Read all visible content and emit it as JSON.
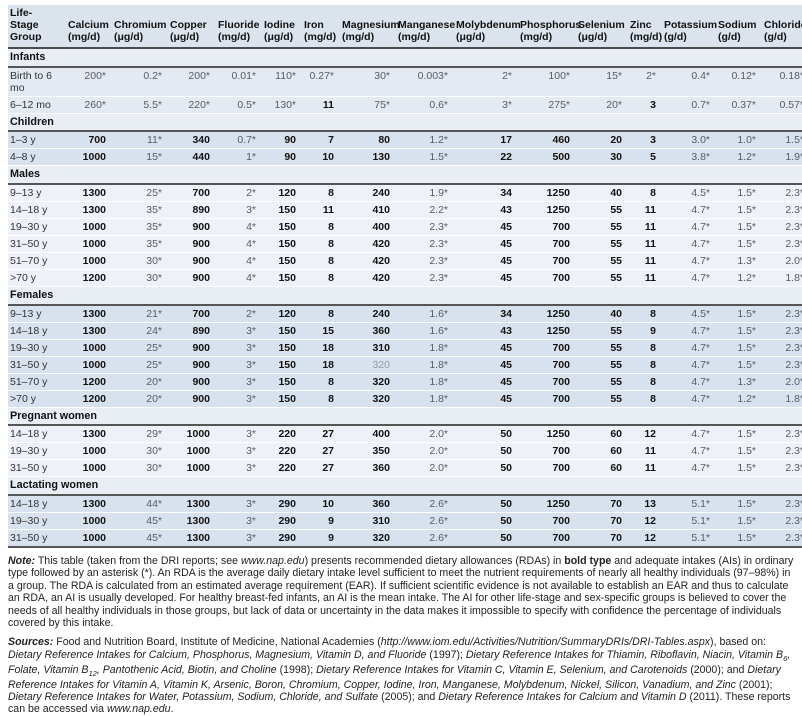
{
  "palette": {
    "header_bg": "#dbe3ed",
    "section_band_bg": "#e9eef5",
    "infants_row_bg": "#e3eaf2",
    "dark_row_bg": "#d8e1ee",
    "light_row_bg": "#eef2f8",
    "rule_dark": "#4b4b4b",
    "rda_text": "#121212",
    "ai_text": "#565c64"
  },
  "table": {
    "columns": [
      {
        "lines": [
          "Life-",
          "Stage",
          "Group"
        ]
      },
      {
        "name": "Calcium",
        "unit": "(mg/d)"
      },
      {
        "name": "Chromium",
        "unit": "(μg/d)"
      },
      {
        "name": "Copper",
        "unit": "(μg/d)"
      },
      {
        "name": "Fluoride",
        "unit": "(mg/d)"
      },
      {
        "name": "Iodine",
        "unit": "(μg/d)"
      },
      {
        "name": "Iron",
        "unit": "(mg/d)"
      },
      {
        "name": "Magnesium",
        "unit": "(mg/d)"
      },
      {
        "name": "Manganese",
        "unit": "(mg/d)"
      },
      {
        "name": "Molybdenum",
        "unit": "(μg/d)"
      },
      {
        "name": "Phosphorus",
        "unit": "(mg/d)"
      },
      {
        "name": "Selenium",
        "unit": "(μg/d)"
      },
      {
        "name": "Zinc",
        "unit": "(mg/d)"
      },
      {
        "name": "Potassium",
        "unit": "(g/d)"
      },
      {
        "name": "Sodium",
        "unit": "(g/d)"
      },
      {
        "name": "Chloride",
        "unit": "(g/d)"
      }
    ],
    "sections": [
      {
        "title": "Infants",
        "rows": [
          {
            "label": "Birth to 6 mo",
            "values": [
              "200*",
              "0.2*",
              "200*",
              "0.01*",
              "110*",
              "0.27*",
              "30*",
              "0.003*",
              "2*",
              "100*",
              "15*",
              "2*",
              "0.4*",
              "0.12*",
              "0.18*"
            ]
          },
          {
            "label": "6–12 mo",
            "values": [
              "260*",
              "5.5*",
              "220*",
              "0.5*",
              "130*",
              "11",
              "75*",
              "0.6*",
              "3*",
              "275*",
              "20*",
              "3",
              "0.7*",
              "0.37*",
              "0.57*"
            ]
          }
        ]
      },
      {
        "title": "Children",
        "rows": [
          {
            "label": "1–3 y",
            "values": [
              "700",
              "11*",
              "340",
              "0.7*",
              "90",
              "7",
              "80",
              "1.2*",
              "17",
              "460",
              "20",
              "3",
              "3.0*",
              "1.0*",
              "1.5*"
            ]
          },
          {
            "label": "4–8 y",
            "values": [
              "1000",
              "15*",
              "440",
              "1*",
              "90",
              "10",
              "130",
              "1.5*",
              "22",
              "500",
              "30",
              "5",
              "3.8*",
              "1.2*",
              "1.9*"
            ]
          }
        ]
      },
      {
        "title": "Males",
        "rows": [
          {
            "label": "9–13 y",
            "values": [
              "1300",
              "25*",
              "700",
              "2*",
              "120",
              "8",
              "240",
              "1.9*",
              "34",
              "1250",
              "40",
              "8",
              "4.5*",
              "1.5*",
              "2.3*"
            ]
          },
          {
            "label": "14–18 y",
            "values": [
              "1300",
              "35*",
              "890",
              "3*",
              "150",
              "11",
              "410",
              "2.2*",
              "43",
              "1250",
              "55",
              "11",
              "4.7*",
              "1.5*",
              "2.3*"
            ]
          },
          {
            "label": "19–30 y",
            "values": [
              "1000",
              "35*",
              "900",
              "4*",
              "150",
              "8",
              "400",
              "2.3*",
              "45",
              "700",
              "55",
              "11",
              "4.7*",
              "1.5*",
              "2.3*"
            ]
          },
          {
            "label": "31–50 y",
            "values": [
              "1000",
              "35*",
              "900",
              "4*",
              "150",
              "8",
              "420",
              "2.3*",
              "45",
              "700",
              "55",
              "11",
              "4.7*",
              "1.5*",
              "2.3*"
            ]
          },
          {
            "label": "51–70 y",
            "values": [
              "1000",
              "30*",
              "900",
              "4*",
              "150",
              "8",
              "420",
              "2.3*",
              "45",
              "700",
              "55",
              "11",
              "4.7*",
              "1.3*",
              "2.0*"
            ]
          },
          {
            "label": ">70 y",
            "values": [
              "1200",
              "30*",
              "900",
              "4*",
              "150",
              "8",
              "420",
              "2.3*",
              "45",
              "700",
              "55",
              "11",
              "4.7*",
              "1.2*",
              "1.8*"
            ]
          }
        ]
      },
      {
        "title": "Females",
        "rows": [
          {
            "label": "9–13 y",
            "values": [
              "1300",
              "21*",
              "700",
              "2*",
              "120",
              "8",
              "240",
              "1.6*",
              "34",
              "1250",
              "40",
              "8",
              "4.5*",
              "1.5*",
              "2.3*"
            ]
          },
          {
            "label": "14–18 y",
            "values": [
              "1300",
              "24*",
              "890",
              "3*",
              "150",
              "15",
              "360",
              "1.6*",
              "43",
              "1250",
              "55",
              "9",
              "4.7*",
              "1.5*",
              "2.3*"
            ]
          },
          {
            "label": "19–30 y",
            "values": [
              "1000",
              "25*",
              "900",
              "3*",
              "150",
              "18",
              "310",
              "1.8*",
              "45",
              "700",
              "55",
              "8",
              "4.7*",
              "1.5*",
              "2.3*"
            ]
          },
          {
            "label": "31–50 y",
            "values": [
              "1000",
              "25*",
              "900",
              "3*",
              "150",
              "18",
              "320^",
              "1.8*",
              "45",
              "700",
              "55",
              "8",
              "4.7*",
              "1.5*",
              "2.3*"
            ]
          },
          {
            "label": "51–70 y",
            "values": [
              "1200",
              "20*",
              "900",
              "3*",
              "150",
              "8",
              "320",
              "1.8*",
              "45",
              "700",
              "55",
              "8",
              "4.7*",
              "1.3*",
              "2.0*"
            ]
          },
          {
            "label": ">70 y",
            "values": [
              "1200",
              "20*",
              "900",
              "3*",
              "150",
              "8",
              "320",
              "1.8*",
              "45",
              "700",
              "55",
              "8",
              "4.7*",
              "1.2*",
              "1.8*"
            ]
          }
        ]
      },
      {
        "title": "Pregnant women",
        "rows": [
          {
            "label": "14–18 y",
            "values": [
              "1300",
              "29*",
              "1000",
              "3*",
              "220",
              "27",
              "400",
              "2.0*",
              "50",
              "1250",
              "60",
              "12",
              "4.7*",
              "1.5*",
              "2.3*"
            ]
          },
          {
            "label": "19–30 y",
            "values": [
              "1000",
              "30*",
              "1000",
              "3*",
              "220",
              "27",
              "350",
              "2.0*",
              "50",
              "700",
              "60",
              "11",
              "4.7*",
              "1.5*",
              "2.3*"
            ]
          },
          {
            "label": "31–50 y",
            "values": [
              "1000",
              "30*",
              "1000",
              "3*",
              "220",
              "27",
              "360",
              "2.0*",
              "50",
              "700",
              "60",
              "11",
              "4.7*",
              "1.5*",
              "2.3*"
            ]
          }
        ]
      },
      {
        "title": "Lactating women",
        "rows": [
          {
            "label": "14–18 y",
            "values": [
              "1300",
              "44*",
              "1300",
              "3*",
              "290",
              "10",
              "360",
              "2.6*",
              "50",
              "1250",
              "70",
              "13",
              "5.1*",
              "1.5*",
              "2.3*"
            ]
          },
          {
            "label": "19–30 y",
            "values": [
              "1000",
              "45*",
              "1300",
              "3*",
              "290",
              "9",
              "310",
              "2.6*",
              "50",
              "700",
              "70",
              "12",
              "5.1*",
              "1.5*",
              "2.3*"
            ]
          },
          {
            "label": "31–50 y",
            "values": [
              "1000",
              "45*",
              "1300",
              "3*",
              "290",
              "9",
              "320",
              "2.6*",
              "50",
              "700",
              "70",
              "12",
              "5.1*",
              "1.5*",
              "2.3*"
            ]
          }
        ]
      }
    ]
  },
  "footnotes": {
    "note": [
      {
        "t": "Note:",
        "s": "bi"
      },
      {
        "t": " This table (taken from the DRI reports; see ",
        "s": "p"
      },
      {
        "t": "www.nap.edu",
        "s": "i"
      },
      {
        "t": ") presents recommended dietary allowances (RDAs) in ",
        "s": "p"
      },
      {
        "t": "bold type",
        "s": "b"
      },
      {
        "t": " and adequate intakes (AIs) in ordinary type followed by an asterisk (*). An RDA is the average daily dietary intake level sufficient to meet the nutrient requirements of nearly all healthy individuals (97–98%) in a group. The RDA is calculated from an estimated average requirement (EAR). If sufficient scientific evidence is not available to establish an EAR and thus to calculate an RDA, an AI is usually developed. For healthy breast-fed infants, an AI is the mean intake. The AI for other life-stage and sex-specific groups is believed to cover the needs of all healthy individuals in those groups, but lack of data or uncertainty in the data makes it impossible to specify with confidence the percentage of individuals covered by this intake.",
        "s": "p"
      }
    ],
    "sources": [
      {
        "t": "Sources:",
        "s": "bi"
      },
      {
        "t": " Food and Nutrition Board, Institute of Medicine, National Academies (",
        "s": "p"
      },
      {
        "t": "http://www.iom.edu/Activities/Nutrition/SummaryDRIs/DRI-Tables.aspx",
        "s": "i"
      },
      {
        "t": "), based on: ",
        "s": "p"
      },
      {
        "t": "Dietary Reference Intakes for Calcium, Phosphorus, Magnesium, Vitamin D, and Fluoride",
        "s": "i"
      },
      {
        "t": " (1997); ",
        "s": "p"
      },
      {
        "t": "Dietary Reference Intakes for Thiamin, Riboflavin, Niacin, Vitamin B",
        "s": "i"
      },
      {
        "t": "6",
        "s": "is"
      },
      {
        "t": ", Folate, Vitamin B",
        "s": "i"
      },
      {
        "t": "12",
        "s": "is"
      },
      {
        "t": ", Pantothenic Acid, Biotin, and Choline",
        "s": "i"
      },
      {
        "t": " (1998); ",
        "s": "p"
      },
      {
        "t": "Dietary Reference Intakes for Vitamin C, Vitamin E, Selenium, and Carotenoids",
        "s": "i"
      },
      {
        "t": " (2000); and ",
        "s": "p"
      },
      {
        "t": "Dietary Reference Intakes for Vitamin A, Vitamin K, Arsenic, Boron, Chromium, Copper, Iodine, Iron, Manganese, Molybdenum, Nickel, Silicon, Vanadium, and Zinc",
        "s": "i"
      },
      {
        "t": " (2001); ",
        "s": "p"
      },
      {
        "t": "Dietary Reference Intakes for Water, Potassium, Sodium, Chloride, and Sulfate",
        "s": "i"
      },
      {
        "t": " (2005); and ",
        "s": "p"
      },
      {
        "t": "Dietary Reference Intakes for Calcium and Vitamin D",
        "s": "i"
      },
      {
        "t": " (2011). These reports can be accessed via ",
        "s": "p"
      },
      {
        "t": "www.nap.edu",
        "s": "i"
      },
      {
        "t": ".",
        "s": "p"
      }
    ]
  }
}
